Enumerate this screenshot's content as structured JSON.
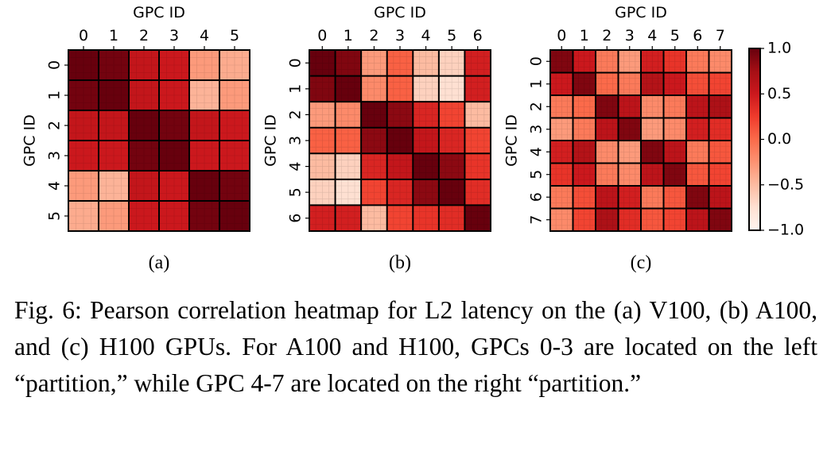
{
  "colormap": {
    "name": "Reds",
    "stops": [
      "#fff5f0",
      "#fee0d2",
      "#fcbba1",
      "#fc9272",
      "#fb6a4a",
      "#ef3b2c",
      "#cb181d",
      "#a50f15",
      "#67000d"
    ]
  },
  "colorbar": {
    "range": [
      -1.0,
      1.0
    ],
    "ticks": [
      "1.0",
      "0.5",
      "0.0",
      "−0.5",
      "−1.0"
    ]
  },
  "chart_data": [
    {
      "type": "heatmap",
      "panel": "(a)",
      "xlabel": "GPC ID",
      "ylabel": "GPC ID",
      "labels": [
        "0",
        "1",
        "2",
        "3",
        "4",
        "5"
      ],
      "clim": [
        -1,
        1
      ],
      "values": [
        [
          1.0,
          0.95,
          0.55,
          0.5,
          -0.3,
          -0.4
        ],
        [
          0.95,
          1.0,
          0.55,
          0.5,
          -0.45,
          -0.3
        ],
        [
          0.55,
          0.55,
          1.0,
          0.95,
          0.55,
          0.5
        ],
        [
          0.5,
          0.5,
          0.95,
          1.0,
          0.5,
          0.5
        ],
        [
          -0.3,
          -0.45,
          0.55,
          0.5,
          1.0,
          0.95
        ],
        [
          -0.4,
          -0.3,
          0.5,
          0.5,
          0.95,
          1.0
        ]
      ]
    },
    {
      "type": "heatmap",
      "panel": "(b)",
      "xlabel": "GPC ID",
      "ylabel": "GPC ID",
      "labels": [
        "0",
        "1",
        "2",
        "3",
        "4",
        "5",
        "6"
      ],
      "clim": [
        -1,
        1
      ],
      "values": [
        [
          1.0,
          0.9,
          -0.3,
          0.05,
          -0.5,
          -0.65,
          0.45
        ],
        [
          0.9,
          1.0,
          -0.2,
          0.05,
          -0.65,
          -0.75,
          0.45
        ],
        [
          -0.3,
          -0.2,
          1.0,
          0.85,
          0.4,
          0.2,
          -0.5
        ],
        [
          0.05,
          0.05,
          0.85,
          1.0,
          0.55,
          0.4,
          0.2
        ],
        [
          -0.5,
          -0.65,
          0.4,
          0.55,
          1.0,
          0.85,
          0.3
        ],
        [
          -0.65,
          -0.75,
          0.2,
          0.4,
          0.85,
          1.0,
          0.35
        ],
        [
          0.45,
          0.45,
          -0.5,
          0.2,
          0.3,
          0.35,
          1.0
        ]
      ]
    },
    {
      "type": "heatmap",
      "panel": "(c)",
      "xlabel": "GPC ID",
      "ylabel": "GPC ID",
      "labels": [
        "0",
        "1",
        "2",
        "3",
        "4",
        "5",
        "6",
        "7"
      ],
      "clim": [
        -1,
        1
      ],
      "values": [
        [
          0.9,
          0.5,
          -0.1,
          -0.3,
          0.45,
          0.3,
          -0.1,
          -0.2
        ],
        [
          0.5,
          0.9,
          0.0,
          -0.1,
          0.65,
          0.5,
          0.15,
          0.2
        ],
        [
          -0.1,
          0.0,
          0.9,
          0.6,
          -0.2,
          -0.1,
          0.6,
          0.7
        ],
        [
          -0.3,
          -0.1,
          0.6,
          0.9,
          -0.3,
          -0.2,
          0.45,
          0.35
        ],
        [
          0.45,
          0.65,
          -0.2,
          -0.3,
          0.9,
          0.6,
          -0.1,
          0.1
        ],
        [
          0.3,
          0.5,
          -0.1,
          -0.2,
          0.6,
          0.9,
          0.1,
          0.2
        ],
        [
          -0.1,
          0.15,
          0.6,
          0.45,
          -0.1,
          0.1,
          0.9,
          0.6
        ],
        [
          -0.2,
          0.2,
          0.7,
          0.35,
          0.1,
          0.2,
          0.6,
          0.9
        ]
      ]
    }
  ],
  "caption": "Fig. 6: Pearson correlation heatmap for L2 latency on the (a) V100, (b) A100, and (c) H100 GPUs. For A100 and H100, GPCs 0-3 are located on the left “partition,” while GPC 4-7 are located on the right “partition.”"
}
